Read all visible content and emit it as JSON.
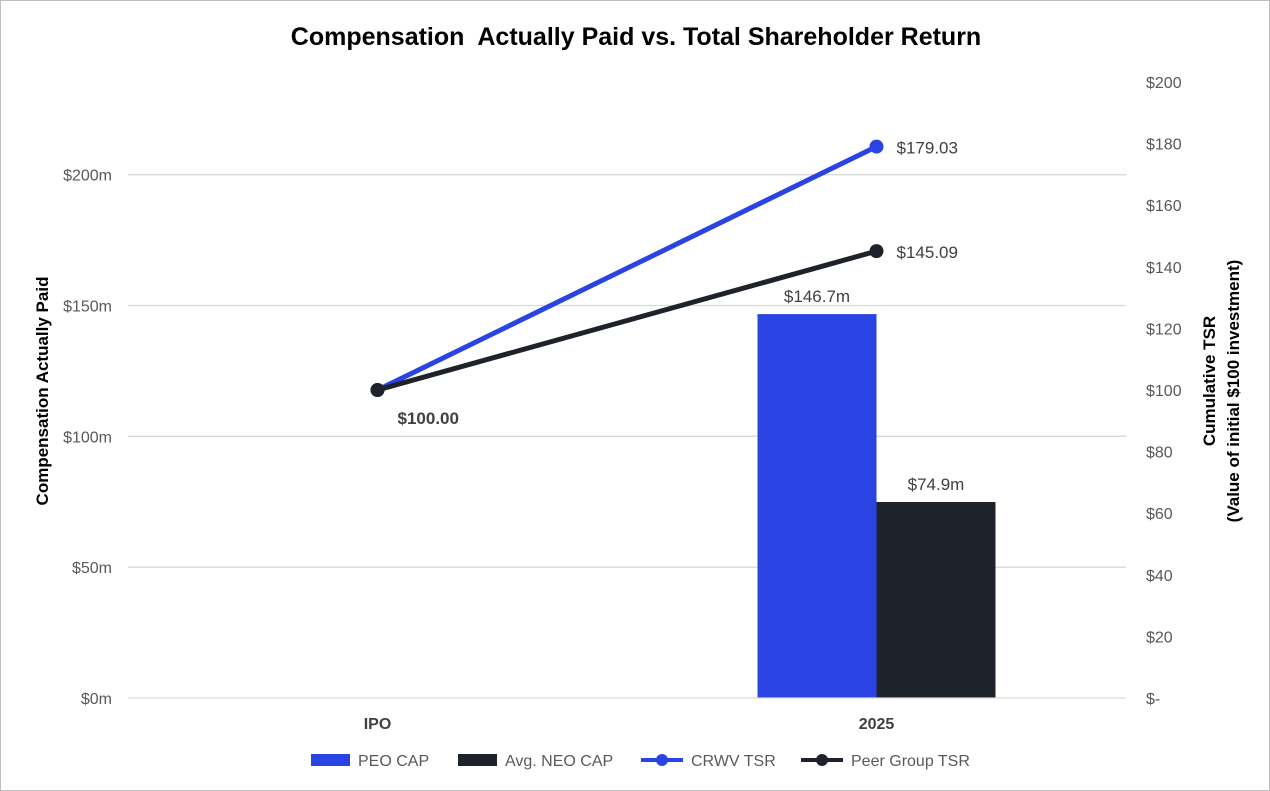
{
  "chart_data": {
    "type": "bar",
    "title": "Compensation  Actually Paid vs. Total Shareholder Return",
    "categories": [
      "IPO",
      "2025"
    ],
    "ylabel": "Compensation Actually Paid",
    "y2label_line1": "Cumulative TSR",
    "y2label_line2": "(Value of initial $100 investment)",
    "ylim": [
      0,
      240
    ],
    "y2lim": [
      0,
      200
    ],
    "y_ticks": [
      {
        "value": 0,
        "label": "$0m"
      },
      {
        "value": 50,
        "label": "$50m"
      },
      {
        "value": 100,
        "label": "$100m"
      },
      {
        "value": 150,
        "label": "$150m"
      },
      {
        "value": 200,
        "label": "$200m"
      }
    ],
    "y2_ticks": [
      {
        "value": 0,
        "label": "$-"
      },
      {
        "value": 20,
        "label": "$20"
      },
      {
        "value": 40,
        "label": "$40"
      },
      {
        "value": 60,
        "label": "$60"
      },
      {
        "value": 80,
        "label": "$80"
      },
      {
        "value": 100,
        "label": "$100"
      },
      {
        "value": 120,
        "label": "$120"
      },
      {
        "value": 140,
        "label": "$140"
      },
      {
        "value": 160,
        "label": "$160"
      },
      {
        "value": 180,
        "label": "$180"
      },
      {
        "value": 200,
        "label": "$200"
      }
    ],
    "grid": true,
    "legend_position": "bottom",
    "bar_series": [
      {
        "name": "PEO CAP",
        "color": "#2a44e3",
        "values": [
          null,
          146.7
        ],
        "labels": [
          "",
          "$146.7m"
        ]
      },
      {
        "name": "Avg. NEO CAP",
        "color": "#1e232b",
        "values": [
          null,
          74.9
        ],
        "labels": [
          "",
          "$74.9m"
        ]
      }
    ],
    "line_series": [
      {
        "name": "CRWV TSR",
        "color": "#2a44e3",
        "axis": "right",
        "values": [
          100.0,
          179.03
        ],
        "labels": [
          "",
          "$179.03"
        ]
      },
      {
        "name": "Peer Group TSR",
        "color": "#1e232b",
        "axis": "right",
        "values": [
          100.0,
          145.09
        ],
        "labels": [
          "$100.00",
          "$145.09"
        ]
      }
    ]
  }
}
